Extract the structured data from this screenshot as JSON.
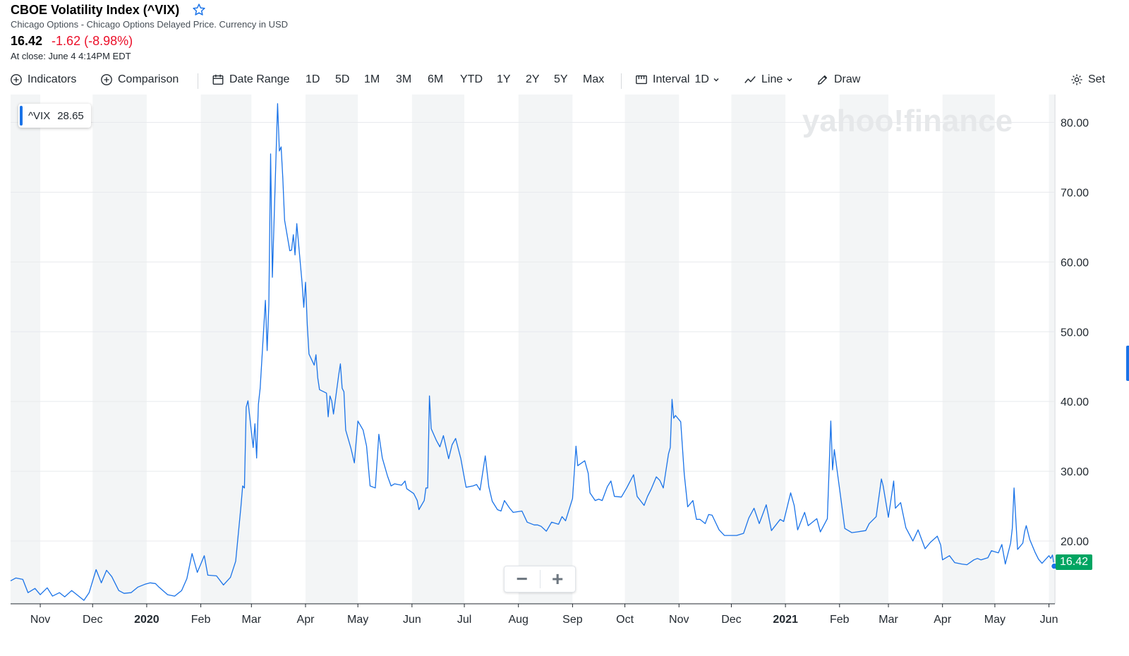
{
  "header": {
    "title": "CBOE Volatility Index (^VIX)",
    "subtitle": "Chicago Options - Chicago Options Delayed Price. Currency in USD",
    "price": "16.42",
    "change": "-1.62 (-8.98%)",
    "close_time": "At close: June 4 4:14PM EDT"
  },
  "toolbar": {
    "indicators": "Indicators",
    "comparison": "Comparison",
    "date_range": "Date Range",
    "ranges": [
      "1D",
      "5D",
      "1M",
      "3M",
      "6M",
      "YTD",
      "1Y",
      "2Y",
      "5Y",
      "Max"
    ],
    "interval_label": "Interval",
    "interval_value": "1D",
    "chart_type": "Line",
    "draw": "Draw",
    "settings": "Set"
  },
  "legend": {
    "symbol": "^VIX",
    "value": "28.65"
  },
  "watermark": "yahoo!finance",
  "zoom": {
    "minus": "−",
    "plus": "+"
  },
  "last_price_label": "16.42",
  "colors": {
    "line": "#1a73e8",
    "negative": "#eb0f29",
    "last_label": "#00a562",
    "band": "#f3f5f6"
  },
  "chart_data": {
    "type": "line",
    "title": "",
    "xlabel": "",
    "ylabel": "",
    "ylim": [
      11,
      84
    ],
    "y_ticks": [
      "20.00",
      "30.00",
      "40.00",
      "50.00",
      "60.00",
      "70.00",
      "80.00"
    ],
    "x_ticks": [
      "Nov",
      "Dec",
      "2020",
      "Feb",
      "Mar",
      "Apr",
      "May",
      "Jun",
      "Jul",
      "Aug",
      "Sep",
      "Oct",
      "Nov",
      "Dec",
      "2021",
      "Feb",
      "Mar",
      "Apr",
      "May",
      "Jun"
    ],
    "x_tick_dates": [
      "2019-11-01",
      "2019-12-01",
      "2020-01-01",
      "2020-02-01",
      "2020-03-01",
      "2020-04-01",
      "2020-05-01",
      "2020-06-01",
      "2020-07-01",
      "2020-08-01",
      "2020-09-01",
      "2020-10-01",
      "2020-11-01",
      "2020-12-01",
      "2021-01-01",
      "2021-02-01",
      "2021-03-01",
      "2021-04-01",
      "2021-05-01",
      "2021-06-01"
    ],
    "grid": true,
    "series": [
      {
        "values": [
          [
            "2019-10-15",
            14.3
          ],
          [
            "2019-10-18",
            14.7
          ],
          [
            "2019-10-22",
            14.5
          ],
          [
            "2019-10-25",
            12.6
          ],
          [
            "2019-10-29",
            13.2
          ],
          [
            "2019-11-01",
            12.3
          ],
          [
            "2019-11-05",
            13.3
          ],
          [
            "2019-11-08",
            12.1
          ],
          [
            "2019-11-12",
            12.6
          ],
          [
            "2019-11-15",
            12.0
          ],
          [
            "2019-11-19",
            12.9
          ],
          [
            "2019-11-22",
            12.3
          ],
          [
            "2019-11-26",
            11.5
          ],
          [
            "2019-11-29",
            12.6
          ],
          [
            "2019-12-03",
            15.9
          ],
          [
            "2019-12-06",
            14.0
          ],
          [
            "2019-12-09",
            15.8
          ],
          [
            "2019-12-12",
            14.9
          ],
          [
            "2019-12-16",
            12.9
          ],
          [
            "2019-12-19",
            12.5
          ],
          [
            "2019-12-23",
            12.6
          ],
          [
            "2019-12-27",
            13.4
          ],
          [
            "2019-12-31",
            13.8
          ],
          [
            "2020-01-03",
            14.0
          ],
          [
            "2020-01-06",
            13.9
          ],
          [
            "2020-01-08",
            13.4
          ],
          [
            "2020-01-13",
            12.3
          ],
          [
            "2020-01-17",
            12.1
          ],
          [
            "2020-01-21",
            12.9
          ],
          [
            "2020-01-24",
            14.6
          ],
          [
            "2020-01-27",
            18.2
          ],
          [
            "2020-01-30",
            15.5
          ],
          [
            "2020-02-03",
            17.9
          ],
          [
            "2020-02-05",
            15.1
          ],
          [
            "2020-02-10",
            15.0
          ],
          [
            "2020-02-14",
            13.7
          ],
          [
            "2020-02-18",
            14.8
          ],
          [
            "2020-02-21",
            17.1
          ],
          [
            "2020-02-24",
            25.0
          ],
          [
            "2020-02-25",
            27.9
          ],
          [
            "2020-02-26",
            27.6
          ],
          [
            "2020-02-27",
            39.2
          ],
          [
            "2020-02-28",
            40.1
          ],
          [
            "2020-03-02",
            33.4
          ],
          [
            "2020-03-03",
            36.8
          ],
          [
            "2020-03-04",
            31.9
          ],
          [
            "2020-03-05",
            39.6
          ],
          [
            "2020-03-06",
            41.9
          ],
          [
            "2020-03-09",
            54.5
          ],
          [
            "2020-03-10",
            47.3
          ],
          [
            "2020-03-11",
            53.9
          ],
          [
            "2020-03-12",
            75.5
          ],
          [
            "2020-03-13",
            57.8
          ],
          [
            "2020-03-16",
            82.7
          ],
          [
            "2020-03-17",
            75.9
          ],
          [
            "2020-03-18",
            76.5
          ],
          [
            "2020-03-19",
            72.0
          ],
          [
            "2020-03-20",
            66.0
          ],
          [
            "2020-03-23",
            61.6
          ],
          [
            "2020-03-24",
            61.7
          ],
          [
            "2020-03-25",
            63.9
          ],
          [
            "2020-03-26",
            61.0
          ],
          [
            "2020-03-27",
            65.5
          ],
          [
            "2020-03-30",
            57.1
          ],
          [
            "2020-03-31",
            53.5
          ],
          [
            "2020-04-01",
            57.1
          ],
          [
            "2020-04-02",
            50.9
          ],
          [
            "2020-04-03",
            46.8
          ],
          [
            "2020-04-06",
            45.2
          ],
          [
            "2020-04-07",
            46.7
          ],
          [
            "2020-04-08",
            43.4
          ],
          [
            "2020-04-09",
            41.7
          ],
          [
            "2020-04-13",
            41.2
          ],
          [
            "2020-04-14",
            37.8
          ],
          [
            "2020-04-15",
            40.8
          ],
          [
            "2020-04-16",
            40.1
          ],
          [
            "2020-04-17",
            38.2
          ],
          [
            "2020-04-20",
            43.8
          ],
          [
            "2020-04-21",
            45.4
          ],
          [
            "2020-04-22",
            41.9
          ],
          [
            "2020-04-23",
            41.4
          ],
          [
            "2020-04-24",
            35.9
          ],
          [
            "2020-04-27",
            33.3
          ],
          [
            "2020-04-29",
            31.2
          ],
          [
            "2020-04-30",
            34.2
          ],
          [
            "2020-05-01",
            37.2
          ],
          [
            "2020-05-04",
            35.9
          ],
          [
            "2020-05-06",
            33.6
          ],
          [
            "2020-05-08",
            27.9
          ],
          [
            "2020-05-11",
            27.6
          ],
          [
            "2020-05-13",
            35.3
          ],
          [
            "2020-05-15",
            31.9
          ],
          [
            "2020-05-18",
            29.3
          ],
          [
            "2020-05-20",
            27.9
          ],
          [
            "2020-05-22",
            28.2
          ],
          [
            "2020-05-26",
            28.0
          ],
          [
            "2020-05-28",
            28.6
          ],
          [
            "2020-05-29",
            27.5
          ],
          [
            "2020-06-02",
            26.8
          ],
          [
            "2020-06-04",
            25.8
          ],
          [
            "2020-06-05",
            24.5
          ],
          [
            "2020-06-08",
            25.8
          ],
          [
            "2020-06-09",
            27.6
          ],
          [
            "2020-06-10",
            27.6
          ],
          [
            "2020-06-11",
            40.8
          ],
          [
            "2020-06-12",
            36.1
          ],
          [
            "2020-06-15",
            34.4
          ],
          [
            "2020-06-17",
            33.5
          ],
          [
            "2020-06-19",
            35.1
          ],
          [
            "2020-06-22",
            31.8
          ],
          [
            "2020-06-24",
            33.8
          ],
          [
            "2020-06-26",
            34.7
          ],
          [
            "2020-06-29",
            31.8
          ],
          [
            "2020-06-30",
            30.4
          ],
          [
            "2020-07-02",
            27.7
          ],
          [
            "2020-07-06",
            27.9
          ],
          [
            "2020-07-08",
            28.1
          ],
          [
            "2020-07-10",
            27.3
          ],
          [
            "2020-07-13",
            32.2
          ],
          [
            "2020-07-15",
            27.8
          ],
          [
            "2020-07-17",
            25.7
          ],
          [
            "2020-07-20",
            24.5
          ],
          [
            "2020-07-22",
            24.3
          ],
          [
            "2020-07-24",
            25.8
          ],
          [
            "2020-07-27",
            24.7
          ],
          [
            "2020-07-29",
            24.1
          ],
          [
            "2020-08-03",
            24.3
          ],
          [
            "2020-08-06",
            22.7
          ],
          [
            "2020-08-10",
            22.3
          ],
          [
            "2020-08-12",
            22.3
          ],
          [
            "2020-08-14",
            22.1
          ],
          [
            "2020-08-17",
            21.4
          ],
          [
            "2020-08-20",
            22.7
          ],
          [
            "2020-08-24",
            22.4
          ],
          [
            "2020-08-26",
            23.5
          ],
          [
            "2020-08-28",
            22.9
          ],
          [
            "2020-09-01",
            26.1
          ],
          [
            "2020-09-03",
            33.6
          ],
          [
            "2020-09-04",
            30.8
          ],
          [
            "2020-09-08",
            31.5
          ],
          [
            "2020-09-10",
            29.7
          ],
          [
            "2020-09-11",
            26.9
          ],
          [
            "2020-09-14",
            25.8
          ],
          [
            "2020-09-16",
            26.0
          ],
          [
            "2020-09-18",
            25.8
          ],
          [
            "2020-09-21",
            27.8
          ],
          [
            "2020-09-23",
            28.6
          ],
          [
            "2020-09-25",
            26.4
          ],
          [
            "2020-09-29",
            26.3
          ],
          [
            "2020-10-02",
            27.6
          ],
          [
            "2020-10-06",
            29.5
          ],
          [
            "2020-10-08",
            26.4
          ],
          [
            "2020-10-12",
            25.1
          ],
          [
            "2020-10-14",
            26.4
          ],
          [
            "2020-10-16",
            27.4
          ],
          [
            "2020-10-19",
            29.2
          ],
          [
            "2020-10-21",
            28.7
          ],
          [
            "2020-10-23",
            27.6
          ],
          [
            "2020-10-26",
            32.5
          ],
          [
            "2020-10-27",
            33.4
          ],
          [
            "2020-10-28",
            40.3
          ],
          [
            "2020-10-29",
            37.6
          ],
          [
            "2020-10-30",
            38.0
          ],
          [
            "2020-11-02",
            37.1
          ],
          [
            "2020-11-04",
            29.6
          ],
          [
            "2020-11-06",
            24.9
          ],
          [
            "2020-11-09",
            25.8
          ],
          [
            "2020-11-11",
            23.1
          ],
          [
            "2020-11-13",
            23.1
          ],
          [
            "2020-11-16",
            22.5
          ],
          [
            "2020-11-18",
            23.8
          ],
          [
            "2020-11-20",
            23.7
          ],
          [
            "2020-11-24",
            21.6
          ],
          [
            "2020-11-27",
            20.8
          ],
          [
            "2020-12-01",
            20.8
          ],
          [
            "2020-12-04",
            20.8
          ],
          [
            "2020-12-08",
            21.1
          ],
          [
            "2020-12-11",
            23.3
          ],
          [
            "2020-12-14",
            24.7
          ],
          [
            "2020-12-17",
            22.5
          ],
          [
            "2020-12-21",
            25.2
          ],
          [
            "2020-12-24",
            21.5
          ],
          [
            "2020-12-29",
            23.1
          ],
          [
            "2020-12-31",
            22.8
          ],
          [
            "2021-01-04",
            26.9
          ],
          [
            "2021-01-06",
            25.1
          ],
          [
            "2021-01-08",
            21.6
          ],
          [
            "2021-01-12",
            24.1
          ],
          [
            "2021-01-14",
            22.2
          ],
          [
            "2021-01-19",
            23.2
          ],
          [
            "2021-01-21",
            21.3
          ],
          [
            "2021-01-25",
            23.2
          ],
          [
            "2021-01-27",
            37.2
          ],
          [
            "2021-01-28",
            30.2
          ],
          [
            "2021-01-29",
            33.1
          ],
          [
            "2021-02-02",
            25.6
          ],
          [
            "2021-02-04",
            21.8
          ],
          [
            "2021-02-08",
            21.2
          ],
          [
            "2021-02-11",
            21.3
          ],
          [
            "2021-02-16",
            21.5
          ],
          [
            "2021-02-18",
            22.5
          ],
          [
            "2021-02-22",
            23.5
          ],
          [
            "2021-02-25",
            28.9
          ],
          [
            "2021-02-26",
            27.9
          ],
          [
            "2021-03-01",
            23.4
          ],
          [
            "2021-03-04",
            28.6
          ],
          [
            "2021-03-05",
            24.7
          ],
          [
            "2021-03-08",
            25.5
          ],
          [
            "2021-03-11",
            21.9
          ],
          [
            "2021-03-15",
            20.0
          ],
          [
            "2021-03-18",
            21.6
          ],
          [
            "2021-03-22",
            18.9
          ],
          [
            "2021-03-25",
            19.8
          ],
          [
            "2021-03-29",
            20.7
          ],
          [
            "2021-03-31",
            19.4
          ],
          [
            "2021-04-01",
            17.3
          ],
          [
            "2021-04-05",
            17.9
          ],
          [
            "2021-04-08",
            16.9
          ],
          [
            "2021-04-12",
            16.7
          ],
          [
            "2021-04-15",
            16.6
          ],
          [
            "2021-04-19",
            17.3
          ],
          [
            "2021-04-21",
            17.5
          ],
          [
            "2021-04-23",
            17.3
          ],
          [
            "2021-04-27",
            17.6
          ],
          [
            "2021-04-29",
            18.6
          ],
          [
            "2021-05-03",
            18.3
          ],
          [
            "2021-05-05",
            19.5
          ],
          [
            "2021-05-07",
            16.7
          ],
          [
            "2021-05-10",
            19.7
          ],
          [
            "2021-05-11",
            21.8
          ],
          [
            "2021-05-12",
            27.6
          ],
          [
            "2021-05-13",
            23.1
          ],
          [
            "2021-05-14",
            18.8
          ],
          [
            "2021-05-17",
            19.7
          ],
          [
            "2021-05-18",
            21.3
          ],
          [
            "2021-05-19",
            22.2
          ],
          [
            "2021-05-21",
            20.2
          ],
          [
            "2021-05-24",
            18.4
          ],
          [
            "2021-05-26",
            17.4
          ],
          [
            "2021-05-28",
            16.8
          ],
          [
            "2021-06-01",
            17.9
          ],
          [
            "2021-06-02",
            17.5
          ],
          [
            "2021-06-03",
            18.0
          ],
          [
            "2021-06-04",
            16.4
          ]
        ]
      }
    ]
  }
}
